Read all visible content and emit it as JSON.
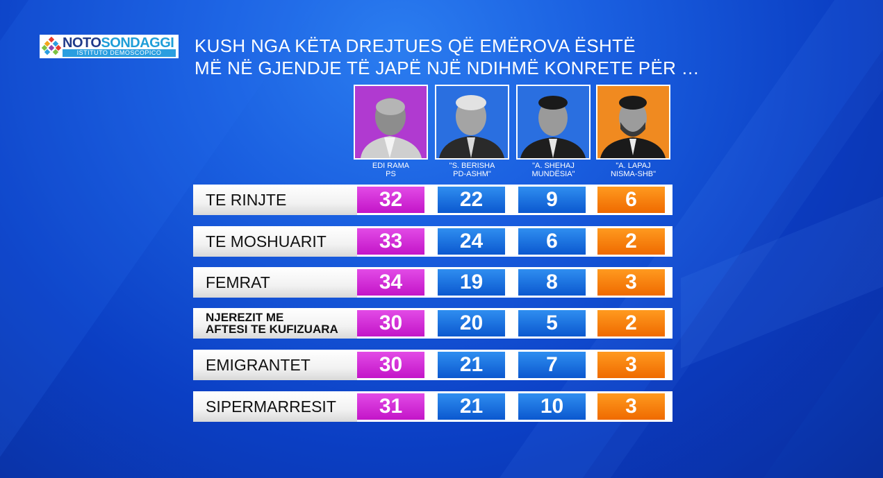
{
  "logo": {
    "word1": "NOTO",
    "word2": "SONDAGGI",
    "subtitle": "ISTITUTO DEMOSCOPICO"
  },
  "title_lines": [
    "KUSH NGA KËTA DREJTUES QË EMËROVA ËSHTË",
    "MË NË GJENDJE TË JAPË NJË NDIHMË KONRETE PËR …"
  ],
  "colors": {
    "ps": "#c315c8",
    "pd": "#0b58cf",
    "mundesia": "#0b58cf",
    "nisma": "#ef6a00",
    "background": "#1a5fe0"
  },
  "candidates": [
    {
      "line1": "EDI RAMA",
      "line2": "PS",
      "photo_bg": "#b03ad0"
    },
    {
      "line1": "\"S. BERISHA",
      "line2": "PD-ASHM\"",
      "photo_bg": "#2a6fe0"
    },
    {
      "line1": "\"A. SHEHAJ",
      "line2": "MUNDËSIA\"",
      "photo_bg": "#2a6fe0"
    },
    {
      "line1": "\"A. LAPAJ",
      "line2": "NISMA-SHB\"",
      "photo_bg": "#f08a20"
    }
  ],
  "chart_data": {
    "type": "table",
    "title": "KUSH NGA KËTA DREJTUES QË EMËROVA ËSHTË MË NË GJENDJE TË JAPË NJË NDIHMË KONRETE PËR …",
    "columns": [
      "EDI RAMA PS",
      "\"S. BERISHA PD-ASHM\"",
      "\"A. SHEHAJ MUNDËSIA\"",
      "\"A. LAPAJ NISMA-SHB\""
    ],
    "rows": [
      {
        "label": "TE RINJTE",
        "label_lines": [
          "TE RINJTE"
        ],
        "values": [
          32,
          22,
          9,
          6
        ]
      },
      {
        "label": "TE MOSHUARIT",
        "label_lines": [
          "TE MOSHUARIT"
        ],
        "values": [
          33,
          24,
          6,
          2
        ]
      },
      {
        "label": "FEMRAT",
        "label_lines": [
          "FEMRAT"
        ],
        "values": [
          34,
          19,
          8,
          3
        ]
      },
      {
        "label": "NJEREZIT ME AFTESI TE KUFIZUARA",
        "label_lines": [
          "NJEREZIT ME",
          "AFTESI TE KUFIZUARA"
        ],
        "values": [
          30,
          20,
          5,
          2
        ]
      },
      {
        "label": "EMIGRANTET",
        "label_lines": [
          "EMIGRANTET"
        ],
        "values": [
          30,
          21,
          7,
          3
        ]
      },
      {
        "label": "SIPERMARRESIT",
        "label_lines": [
          "SIPERMARRESIT"
        ],
        "values": [
          31,
          21,
          10,
          3
        ]
      }
    ]
  }
}
